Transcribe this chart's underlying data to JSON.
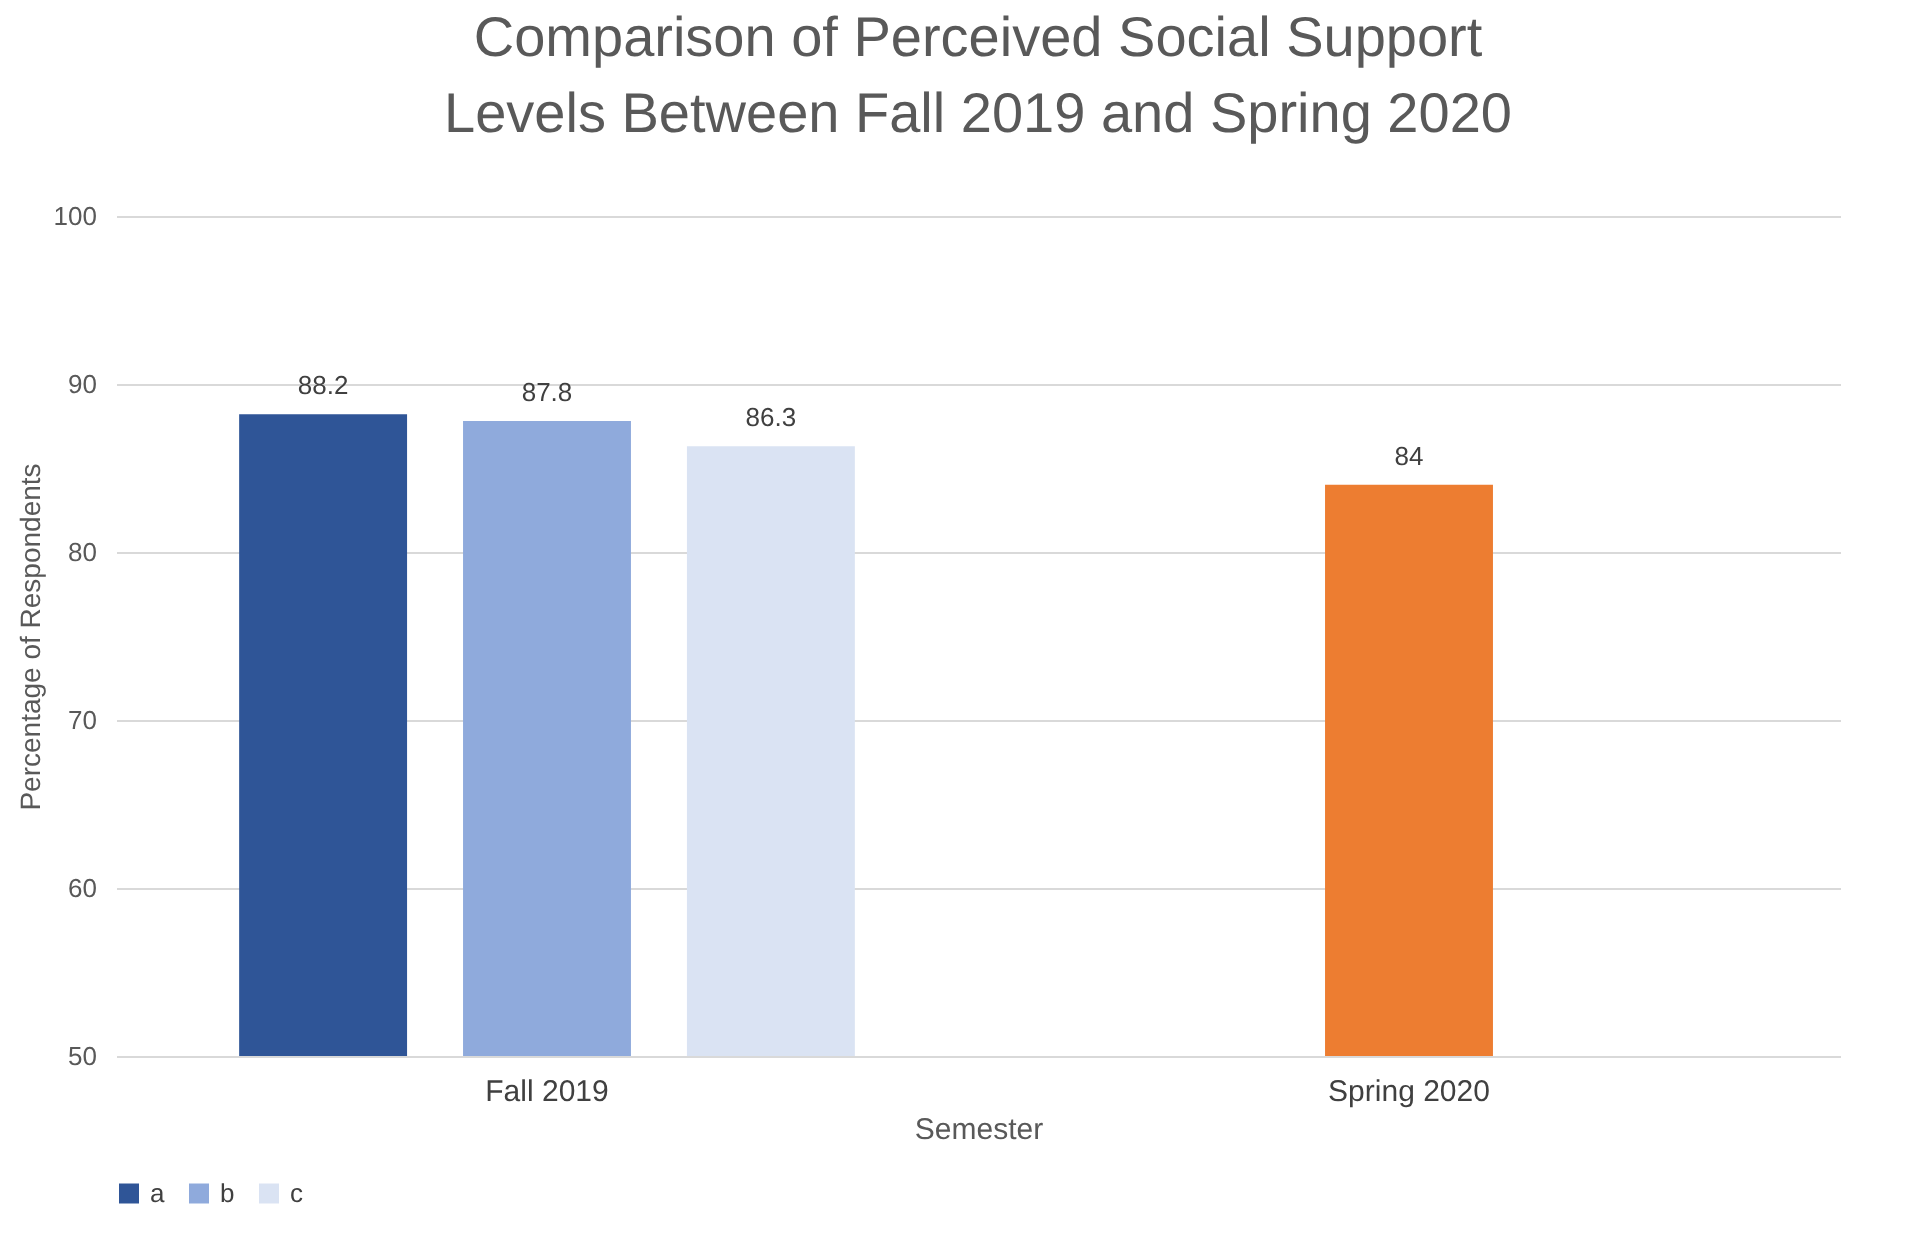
{
  "chart_data": {
    "type": "bar",
    "title": "Comparison of Perceived Social Support Levels Between Fall 2019 and Spring 2020",
    "xlabel": "Semester",
    "ylabel": "Percentage of Respondents",
    "categories": [
      "Fall 2019",
      "Spring 2020"
    ],
    "series": [
      {
        "name": "a",
        "color": "#2f5597",
        "values": [
          88.2,
          null
        ]
      },
      {
        "name": "b",
        "color": "#8faadc",
        "colors": [
          "#8faadc",
          "#ed7d31"
        ],
        "values": [
          87.8,
          84
        ]
      },
      {
        "name": "c",
        "color": "#dae3f3",
        "values": [
          86.3,
          null
        ]
      }
    ],
    "ylim": [
      50,
      100
    ],
    "yticks": [
      50,
      60,
      70,
      80,
      90,
      100
    ],
    "grid": "y",
    "legend": "bottom",
    "data_labels": true
  }
}
